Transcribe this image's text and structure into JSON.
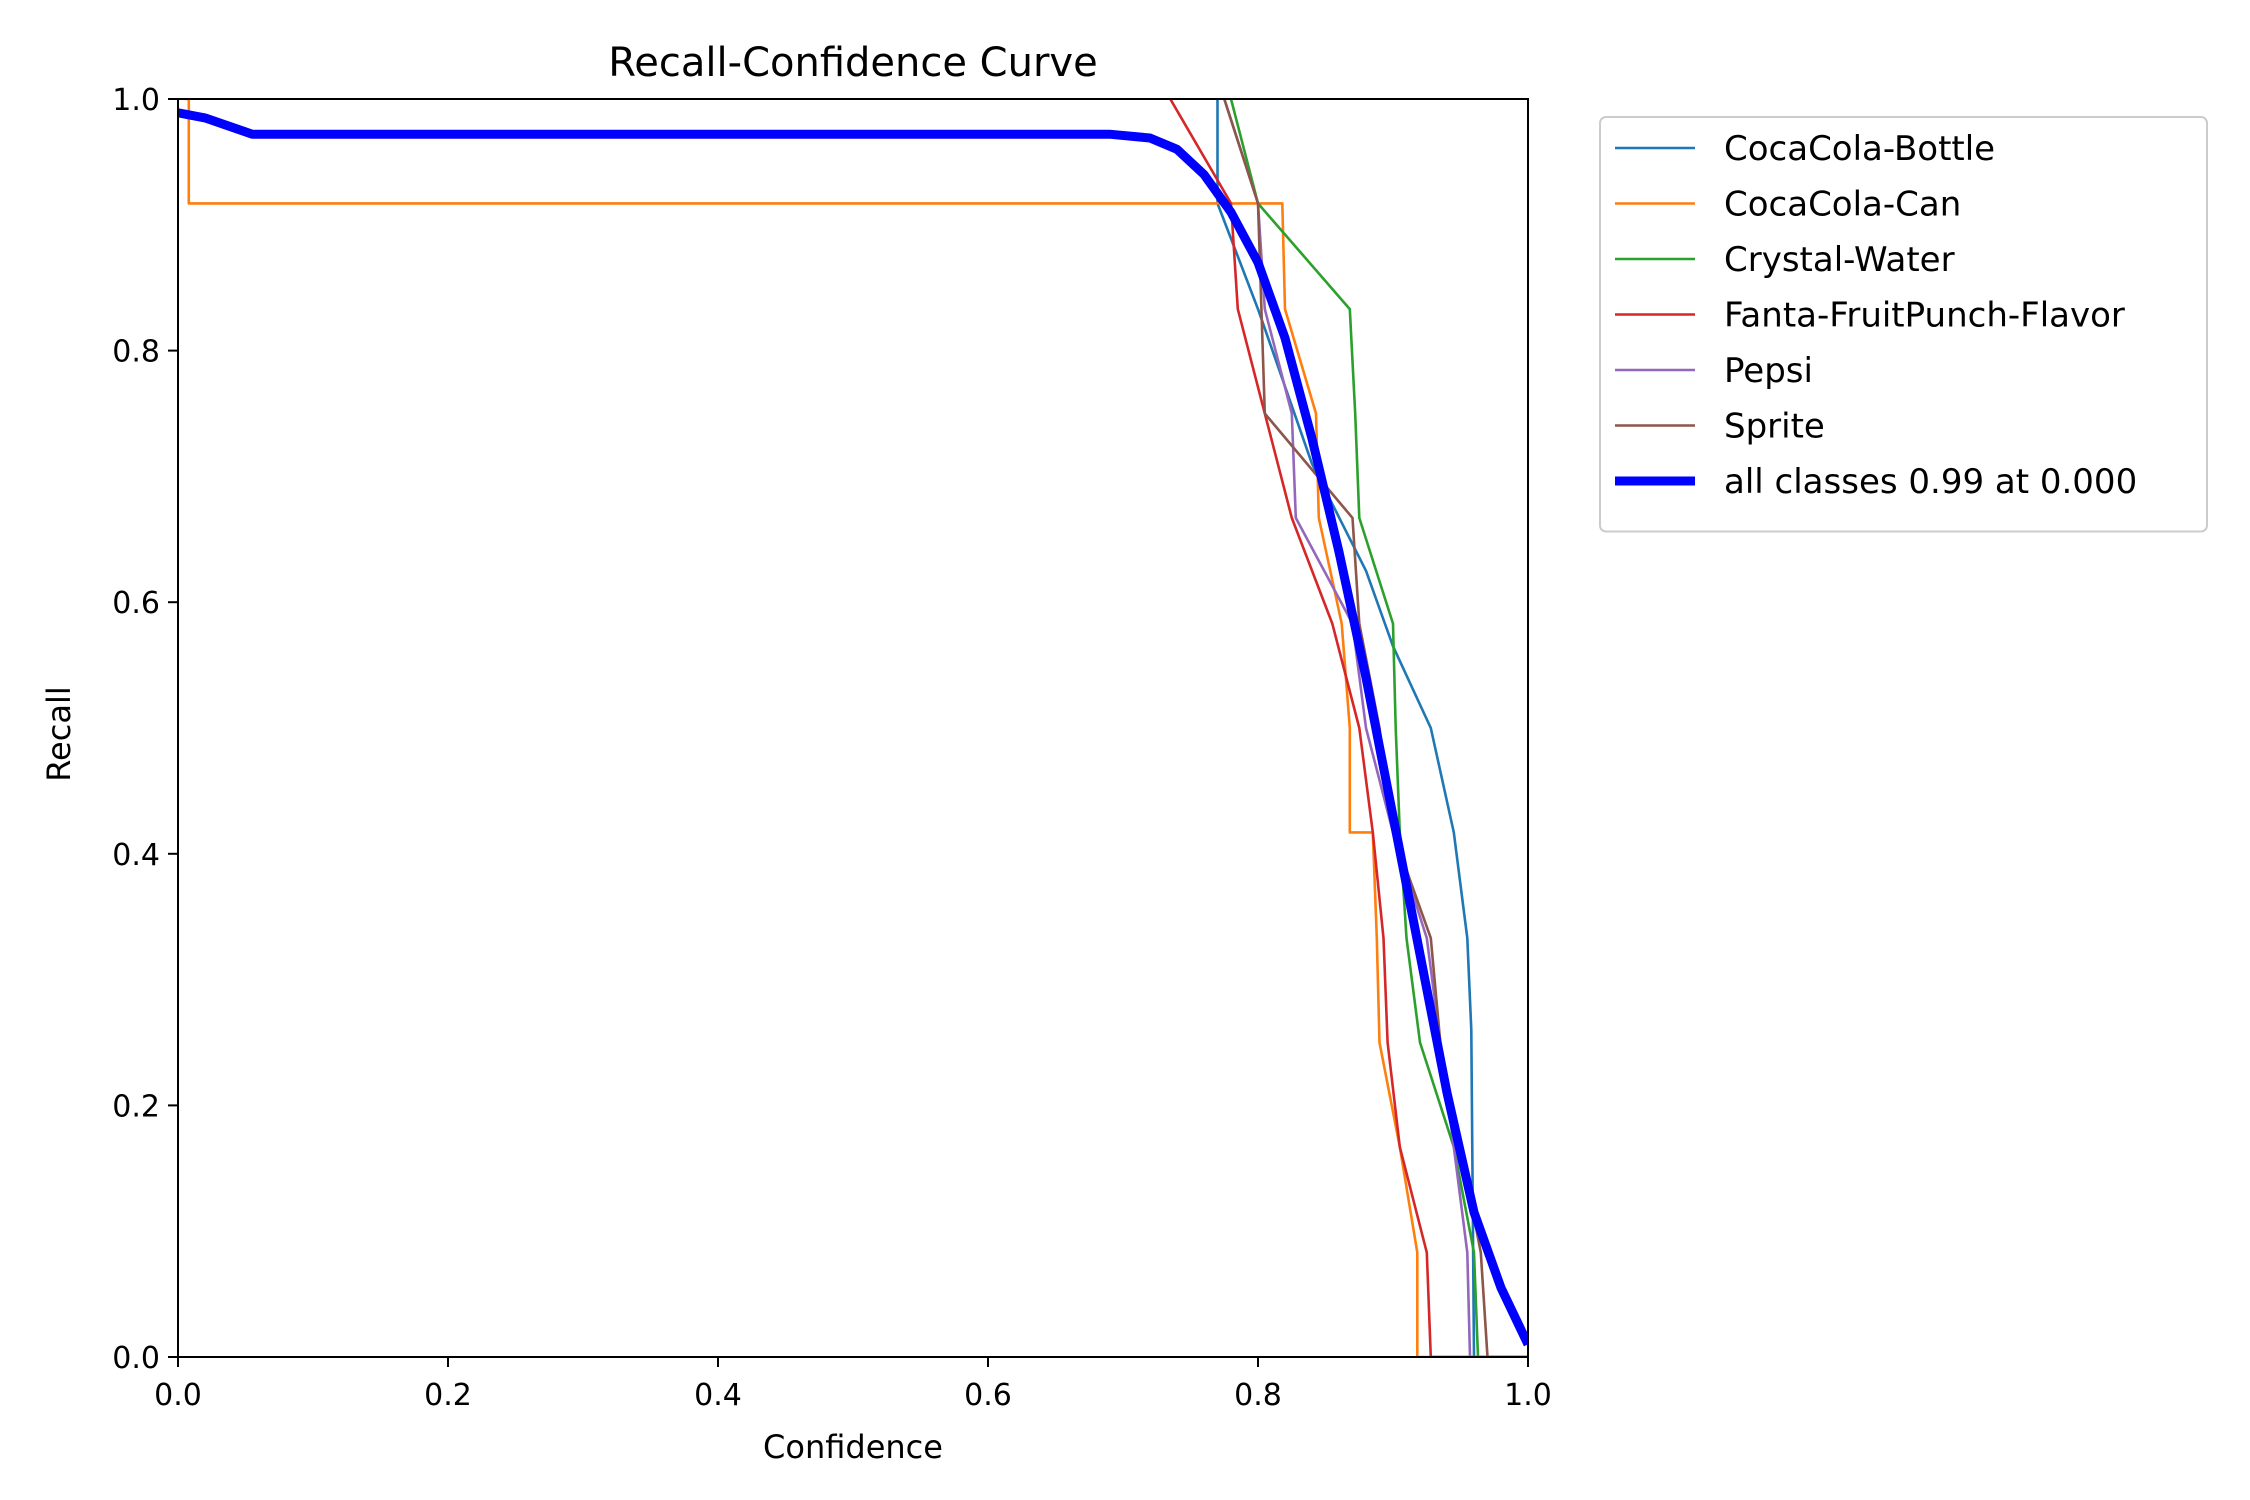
{
  "chart_data": {
    "type": "line",
    "title": "Recall-Confidence Curve",
    "xlabel": "Confidence",
    "ylabel": "Recall",
    "xlim": [
      0,
      1
    ],
    "ylim": [
      0,
      1
    ],
    "xticks": [
      "0.0",
      "0.2",
      "0.4",
      "0.6",
      "0.8",
      "1.0"
    ],
    "yticks": [
      "0.0",
      "0.2",
      "0.4",
      "0.6",
      "0.8",
      "1.0"
    ],
    "grid": false,
    "legend_position": "outside-top-right",
    "series": [
      {
        "name": "CocaCola-Bottle",
        "color": "#1f77b4",
        "points": [
          [
            0.77,
            1.0
          ],
          [
            0.77,
            0.917
          ],
          [
            0.8,
            0.833
          ],
          [
            0.84,
            0.71
          ],
          [
            0.88,
            0.625
          ],
          [
            0.9,
            0.565
          ],
          [
            0.928,
            0.5
          ],
          [
            0.945,
            0.417
          ],
          [
            0.955,
            0.333
          ],
          [
            0.958,
            0.26
          ],
          [
            0.96,
            0.0
          ],
          [
            1.0,
            0.0
          ]
        ]
      },
      {
        "name": "CocaCola-Can",
        "color": "#ff7f0e",
        "points": [
          [
            0.005,
            1.0
          ],
          [
            0.008,
            1.0
          ],
          [
            0.008,
            0.917
          ],
          [
            0.818,
            0.917
          ],
          [
            0.82,
            0.833
          ],
          [
            0.843,
            0.75
          ],
          [
            0.845,
            0.667
          ],
          [
            0.862,
            0.583
          ],
          [
            0.868,
            0.5
          ],
          [
            0.868,
            0.417
          ],
          [
            0.885,
            0.417
          ],
          [
            0.888,
            0.333
          ],
          [
            0.89,
            0.25
          ],
          [
            0.905,
            0.167
          ],
          [
            0.918,
            0.083
          ],
          [
            0.918,
            0.0
          ],
          [
            1.0,
            0.0
          ]
        ]
      },
      {
        "name": "Crystal-Water",
        "color": "#2ca02c",
        "points": [
          [
            0.78,
            1.0
          ],
          [
            0.8,
            0.917
          ],
          [
            0.868,
            0.833
          ],
          [
            0.872,
            0.75
          ],
          [
            0.875,
            0.667
          ],
          [
            0.9,
            0.583
          ],
          [
            0.902,
            0.5
          ],
          [
            0.905,
            0.417
          ],
          [
            0.91,
            0.333
          ],
          [
            0.92,
            0.25
          ],
          [
            0.945,
            0.167
          ],
          [
            0.96,
            0.083
          ],
          [
            0.963,
            0.0
          ],
          [
            1.0,
            0.0
          ]
        ]
      },
      {
        "name": "Fanta-FruitPunch-Flavor",
        "color": "#d62728",
        "points": [
          [
            0.735,
            1.0
          ],
          [
            0.78,
            0.917
          ],
          [
            0.785,
            0.833
          ],
          [
            0.805,
            0.75
          ],
          [
            0.825,
            0.667
          ],
          [
            0.855,
            0.583
          ],
          [
            0.875,
            0.5
          ],
          [
            0.885,
            0.417
          ],
          [
            0.893,
            0.333
          ],
          [
            0.896,
            0.25
          ],
          [
            0.905,
            0.167
          ],
          [
            0.925,
            0.083
          ],
          [
            0.928,
            0.0
          ],
          [
            1.0,
            0.0
          ]
        ]
      },
      {
        "name": "Pepsi",
        "color": "#9467bd",
        "points": [
          [
            0.775,
            1.0
          ],
          [
            0.8,
            0.917
          ],
          [
            0.805,
            0.833
          ],
          [
            0.825,
            0.75
          ],
          [
            0.828,
            0.667
          ],
          [
            0.87,
            0.583
          ],
          [
            0.88,
            0.5
          ],
          [
            0.9,
            0.417
          ],
          [
            0.925,
            0.333
          ],
          [
            0.945,
            0.167
          ],
          [
            0.955,
            0.083
          ],
          [
            0.957,
            0.0
          ],
          [
            1.0,
            0.0
          ]
        ]
      },
      {
        "name": "Sprite",
        "color": "#8c564b",
        "points": [
          [
            0.775,
            1.0
          ],
          [
            0.8,
            0.917
          ],
          [
            0.805,
            0.75
          ],
          [
            0.87,
            0.667
          ],
          [
            0.875,
            0.583
          ],
          [
            0.89,
            0.5
          ],
          [
            0.9,
            0.417
          ],
          [
            0.928,
            0.333
          ],
          [
            0.935,
            0.25
          ],
          [
            0.95,
            0.167
          ],
          [
            0.965,
            0.083
          ],
          [
            0.97,
            0.0
          ],
          [
            1.0,
            0.0
          ]
        ]
      },
      {
        "name": "all classes 0.99 at 0.000",
        "color": "#0000ff",
        "thick": true,
        "points": [
          [
            0.0,
            0.989
          ],
          [
            0.02,
            0.985
          ],
          [
            0.055,
            0.972
          ],
          [
            0.1,
            0.972
          ],
          [
            0.3,
            0.972
          ],
          [
            0.5,
            0.972
          ],
          [
            0.69,
            0.972
          ],
          [
            0.72,
            0.969
          ],
          [
            0.74,
            0.96
          ],
          [
            0.76,
            0.94
          ],
          [
            0.78,
            0.91
          ],
          [
            0.8,
            0.87
          ],
          [
            0.82,
            0.81
          ],
          [
            0.84,
            0.73
          ],
          [
            0.86,
            0.64
          ],
          [
            0.88,
            0.54
          ],
          [
            0.9,
            0.43
          ],
          [
            0.92,
            0.32
          ],
          [
            0.94,
            0.21
          ],
          [
            0.96,
            0.115
          ],
          [
            0.98,
            0.055
          ],
          [
            1.0,
            0.01
          ]
        ]
      }
    ]
  }
}
